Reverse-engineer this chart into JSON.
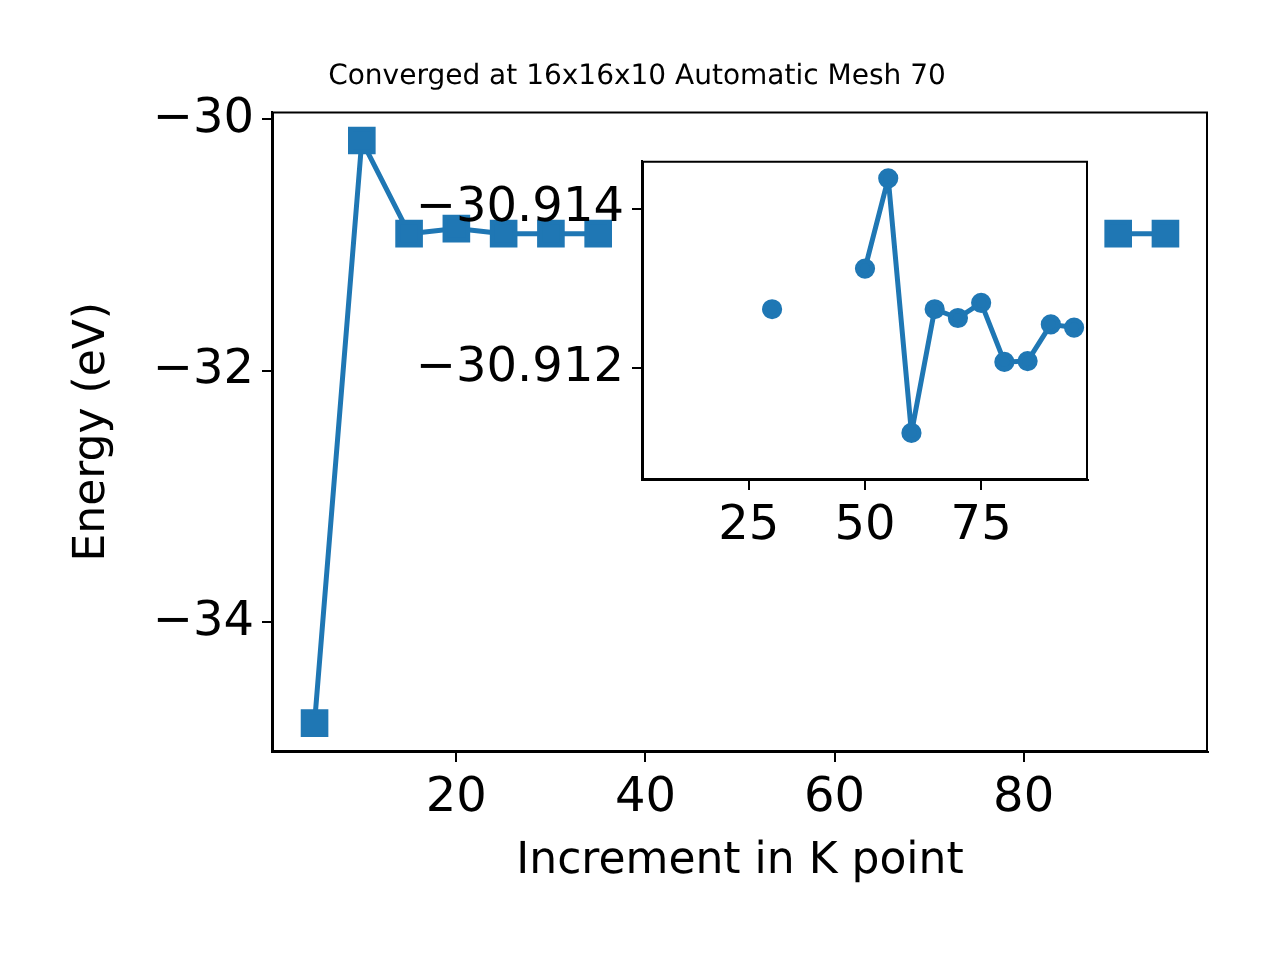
{
  "chart_data": [
    {
      "type": "line",
      "title": "Converged at 16x16x10 Automatic Mesh 70",
      "xlabel": "Increment in K point",
      "ylabel": "Energy (eV)",
      "x": [
        5,
        10,
        15,
        20,
        25,
        30,
        35,
        40,
        45,
        50,
        55,
        60,
        65,
        70,
        75,
        80,
        85,
        90,
        95
      ],
      "values": [
        -34.8,
        -30.17,
        -30.91,
        -30.87,
        -30.91,
        -30.91,
        -30.91,
        null,
        null,
        null,
        null,
        null,
        null,
        null,
        null,
        null,
        null,
        -30.91,
        -30.91
      ],
      "color": "#1f77b4",
      "marker": "square",
      "xlim": [
        0.5,
        99.5
      ],
      "ylim": [
        -35.03,
        -29.94
      ],
      "xticks": [
        20,
        40,
        60,
        80
      ],
      "yticks": [
        {
          "value": -30,
          "label": "−30"
        },
        {
          "value": -32,
          "label": "−32"
        },
        {
          "value": -34,
          "label": "−34"
        }
      ]
    },
    {
      "type": "line",
      "series": [
        {
          "color": "#1f77b4",
          "x": [
            30
          ],
          "values": [
            -30.91274
          ]
        },
        {
          "color": "#1f77b4",
          "x": [
            50,
            55,
            60,
            65,
            70,
            75,
            80,
            85,
            90,
            95
          ],
          "values": [
            -30.91325,
            -30.91438,
            -30.91119,
            -30.91274,
            -30.91263,
            -30.91282,
            -30.91208,
            -30.91209,
            -30.91255,
            -30.91251
          ]
        }
      ],
      "marker": "circle",
      "xlim": [
        2,
        98
      ],
      "ylim": [
        -30.9106,
        -30.9146
      ],
      "xticks": [
        25,
        50,
        75
      ],
      "yticks": [
        {
          "value": -30.914,
          "label": "−30.914"
        },
        {
          "value": -30.912,
          "label": "−30.912"
        }
      ]
    }
  ]
}
